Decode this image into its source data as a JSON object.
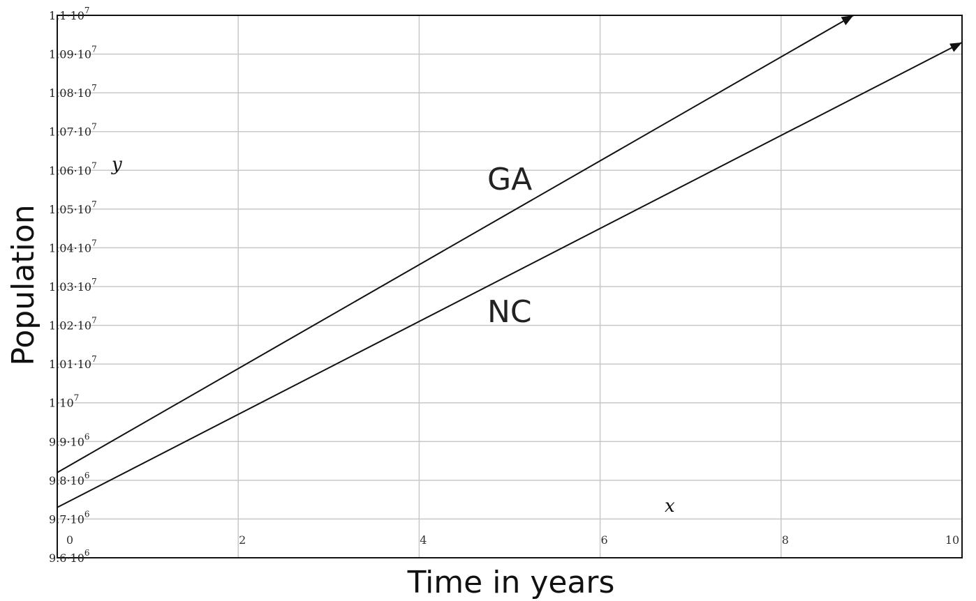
{
  "chart_data": {
    "type": "line",
    "xlabel": "Time in years",
    "ylabel": "Population",
    "x_var": "x",
    "y_var": "y",
    "xlim": [
      0,
      10
    ],
    "ylim": [
      9600000,
      11000000
    ],
    "x_ticks": [
      0,
      2,
      4,
      6,
      8,
      10
    ],
    "y_ticks": [
      {
        "value": 9600000,
        "mant": "9.6·10",
        "exp": "6"
      },
      {
        "value": 9700000,
        "mant": "9.7·10",
        "exp": "6"
      },
      {
        "value": 9800000,
        "mant": "9.8·10",
        "exp": "6"
      },
      {
        "value": 9900000,
        "mant": "9.9·10",
        "exp": "6"
      },
      {
        "value": 10000000,
        "mant": "1·10",
        "exp": "7"
      },
      {
        "value": 10100000,
        "mant": "1.01·10",
        "exp": "7"
      },
      {
        "value": 10200000,
        "mant": "1.02·10",
        "exp": "7"
      },
      {
        "value": 10300000,
        "mant": "1.03·10",
        "exp": "7"
      },
      {
        "value": 10400000,
        "mant": "1.04·10",
        "exp": "7"
      },
      {
        "value": 10500000,
        "mant": "1.05·10",
        "exp": "7"
      },
      {
        "value": 10600000,
        "mant": "1.06·10",
        "exp": "7"
      },
      {
        "value": 10700000,
        "mant": "1.07·10",
        "exp": "7"
      },
      {
        "value": 10800000,
        "mant": "1.08·10",
        "exp": "7"
      },
      {
        "value": 10900000,
        "mant": "1.09·10",
        "exp": "7"
      },
      {
        "value": 11000000,
        "mant": "1.1·10",
        "exp": "7"
      }
    ],
    "grid": true,
    "series": [
      {
        "name": "GA",
        "x": [
          0,
          8.8
        ],
        "values": [
          9820000,
          11000000
        ]
      },
      {
        "name": "NC",
        "x": [
          0,
          10
        ],
        "values": [
          9730000,
          10930000
        ]
      }
    ],
    "colors": {
      "line": "#111111",
      "grid": "#c8c8c8",
      "axis": "#111111"
    }
  }
}
